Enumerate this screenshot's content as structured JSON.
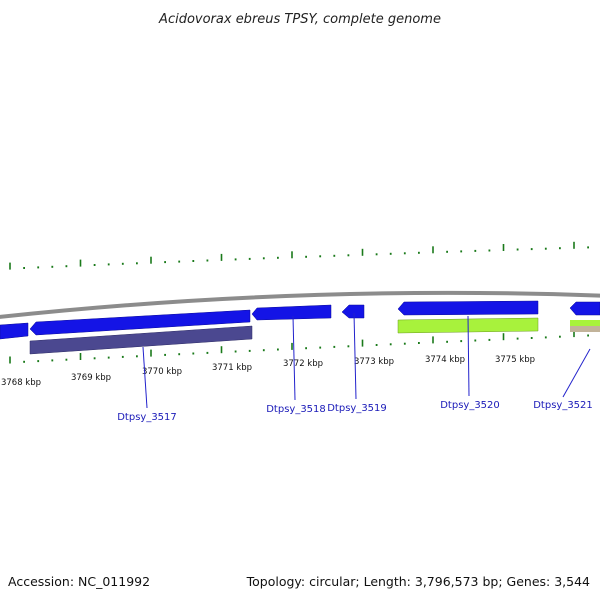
{
  "title": "Acidovorax ebreus TPSY, complete genome",
  "footer": {
    "accession": "Accession: NC_011992",
    "topology": "Topology: circular; Length: 3,796,573 bp; Genes: 3,544"
  },
  "colors": {
    "backbone": "#8c8c8c",
    "tick": "#1a7a1a",
    "gene_forward": "#1414e6",
    "gene_dark": "#4b4890",
    "gene_green": "#a8f23c",
    "label": "#1a1ab8",
    "leader": "#2222cc"
  },
  "axis": {
    "unit": "kbp",
    "labels": [
      "3768 kbp",
      "3769 kbp",
      "3770 kbp",
      "3771 kbp",
      "3772 kbp",
      "3773 kbp",
      "3774 kbp",
      "3775 kbp"
    ]
  },
  "genes": [
    {
      "name": "Dtpsy_3517"
    },
    {
      "name": "Dtpsy_3518"
    },
    {
      "name": "Dtpsy_3519"
    },
    {
      "name": "Dtpsy_3520"
    },
    {
      "name": "Dtpsy_3521"
    }
  ]
}
